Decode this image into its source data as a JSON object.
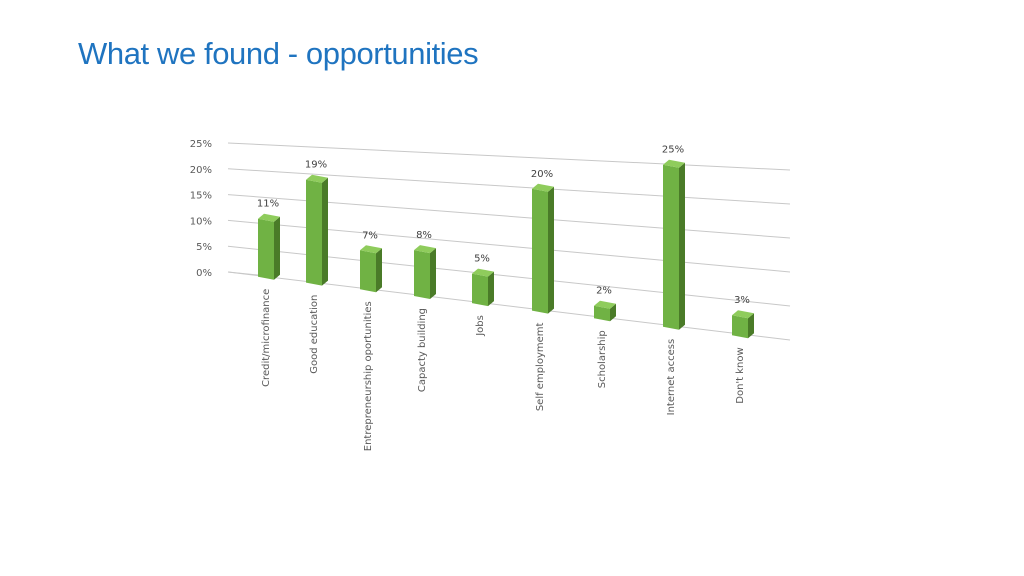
{
  "slide": {
    "title": "What we found - opportunities"
  },
  "chart_data": {
    "type": "bar",
    "style": "3d-column",
    "categories": [
      "Credit/microfinance",
      "Good education",
      "Entrepreneurship oportunities",
      "Capacty building",
      "Jobs",
      "Self employmemt",
      "Scholarship",
      "Internet access",
      "Don't know"
    ],
    "values": [
      11,
      19,
      7,
      8,
      5,
      20,
      2,
      25,
      3
    ],
    "data_labels": [
      "11%",
      "19%",
      "7%",
      "8%",
      "5%",
      "20%",
      "2%",
      "25%",
      "3%"
    ],
    "yticks": [
      0,
      5,
      10,
      15,
      20,
      25
    ],
    "ytick_labels": [
      "0%",
      "5%",
      "10%",
      "15%",
      "20%",
      "25%"
    ],
    "ylim": [
      0,
      25
    ],
    "grid": true,
    "legend": "none",
    "title": "",
    "xlabel": "",
    "ylabel": "",
    "colors": {
      "front": "#70b244",
      "side": "#4a7b28",
      "top": "#8fcc5c",
      "grid": "#c8c8c8"
    }
  }
}
